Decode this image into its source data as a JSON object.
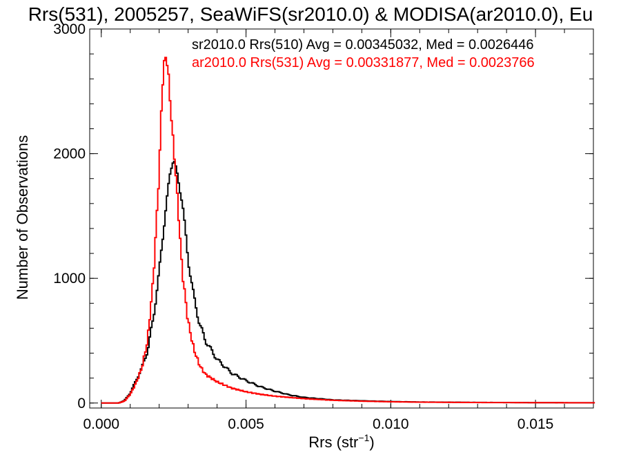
{
  "chart_data": {
    "type": "line",
    "title": "Rrs(531), 2005257, SeaWiFS(sr2010.0) & MODISA(ar2010.0), Eu",
    "xlabel": "Rrs (str",
    "xlabel_sup": "−1",
    "xlabel_close": ")",
    "ylabel": "Number of Observations",
    "xlim": [
      -0.0004,
      0.017
    ],
    "ylim": [
      -40,
      3000
    ],
    "xticks": [
      "0.000",
      "0.005",
      "0.010",
      "0.015"
    ],
    "xtick_values": [
      0.0,
      0.005,
      0.01,
      0.015
    ],
    "yticks": [
      "0",
      "1000",
      "2000",
      "3000"
    ],
    "ytick_values": [
      0,
      1000,
      2000,
      3000
    ],
    "step": true,
    "legend_position": "top-right",
    "series": [
      {
        "name": "sr2010.0 Rrs(510) Avg = 0.00345032, Med = 0.0026446",
        "color": "#000000",
        "points": [
          [
            0.0,
            0
          ],
          [
            0.0006,
            0
          ],
          [
            0.0008,
            20
          ],
          [
            0.001,
            80
          ],
          [
            0.0012,
            180
          ],
          [
            0.0014,
            280
          ],
          [
            0.0016,
            420
          ],
          [
            0.0018,
            680
          ],
          [
            0.002,
            1050
          ],
          [
            0.0022,
            1500
          ],
          [
            0.0024,
            1880
          ],
          [
            0.0025,
            1970
          ],
          [
            0.0026,
            1850
          ],
          [
            0.0028,
            1620
          ],
          [
            0.003,
            1150
          ],
          [
            0.0032,
            850
          ],
          [
            0.0034,
            630
          ],
          [
            0.0036,
            500
          ],
          [
            0.004,
            350
          ],
          [
            0.0045,
            240
          ],
          [
            0.005,
            180
          ],
          [
            0.0055,
            130
          ],
          [
            0.006,
            95
          ],
          [
            0.0065,
            65
          ],
          [
            0.007,
            45
          ],
          [
            0.008,
            25
          ],
          [
            0.009,
            18
          ],
          [
            0.01,
            12
          ],
          [
            0.011,
            8
          ],
          [
            0.013,
            5
          ],
          [
            0.015,
            3
          ],
          [
            0.017,
            2
          ]
        ]
      },
      {
        "name": "ar2010.0 Rrs(531) Avg = 0.00331877, Med = 0.0023766",
        "color": "#ff0000",
        "points": [
          [
            0.0,
            0
          ],
          [
            0.0006,
            0
          ],
          [
            0.0008,
            15
          ],
          [
            0.001,
            70
          ],
          [
            0.0012,
            160
          ],
          [
            0.0014,
            280
          ],
          [
            0.0016,
            500
          ],
          [
            0.0018,
            1000
          ],
          [
            0.002,
            1850
          ],
          [
            0.0021,
            2500
          ],
          [
            0.0022,
            2800
          ],
          [
            0.0023,
            2700
          ],
          [
            0.0024,
            2350
          ],
          [
            0.0026,
            1750
          ],
          [
            0.0028,
            1050
          ],
          [
            0.003,
            650
          ],
          [
            0.0032,
            430
          ],
          [
            0.0034,
            300
          ],
          [
            0.0036,
            230
          ],
          [
            0.004,
            170
          ],
          [
            0.0045,
            120
          ],
          [
            0.005,
            90
          ],
          [
            0.0055,
            70
          ],
          [
            0.006,
            55
          ],
          [
            0.007,
            35
          ],
          [
            0.008,
            22
          ],
          [
            0.009,
            15
          ],
          [
            0.01,
            10
          ],
          [
            0.011,
            7
          ],
          [
            0.013,
            4
          ],
          [
            0.015,
            3
          ],
          [
            0.017,
            2
          ]
        ]
      }
    ]
  }
}
